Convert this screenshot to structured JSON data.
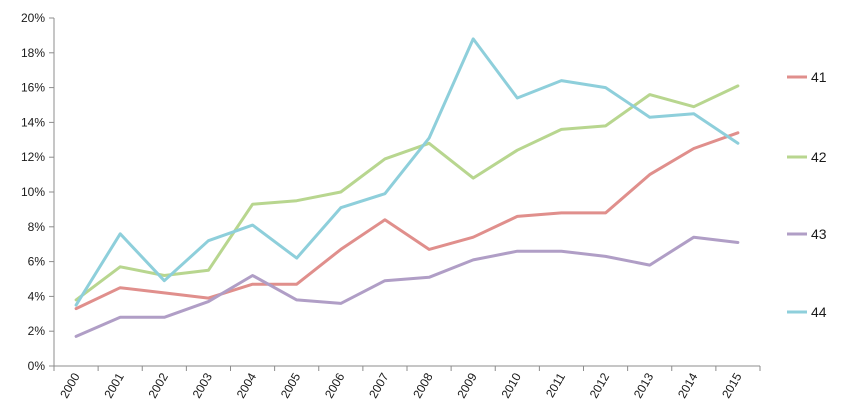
{
  "chart_data": {
    "type": "line",
    "x": [
      "2000",
      "2001",
      "2002",
      "2003",
      "2004",
      "2005",
      "2006",
      "2007",
      "2008",
      "2009",
      "2010",
      "2011",
      "2012",
      "2013",
      "2014",
      "2015"
    ],
    "ylim": [
      0,
      20
    ],
    "yticks": [
      0,
      2,
      4,
      6,
      8,
      10,
      12,
      14,
      16,
      18,
      20
    ],
    "ytick_labels": [
      "0%",
      "2%",
      "4%",
      "6%",
      "8%",
      "10%",
      "12%",
      "14%",
      "16%",
      "18%",
      "20%"
    ],
    "grid": false,
    "legend_position": "right",
    "title": "",
    "xlabel": "",
    "ylabel": "",
    "series": [
      {
        "name": "41",
        "color": "#e08f8c",
        "values": [
          3.3,
          4.5,
          4.2,
          3.9,
          4.7,
          4.7,
          6.7,
          8.4,
          6.7,
          7.4,
          8.6,
          8.8,
          8.8,
          11.0,
          12.5,
          13.4
        ]
      },
      {
        "name": "42",
        "color": "#b8d68f",
        "values": [
          3.8,
          5.7,
          5.2,
          5.5,
          9.3,
          9.5,
          10.0,
          11.9,
          12.8,
          10.8,
          12.4,
          13.6,
          13.8,
          15.6,
          14.9,
          16.1
        ]
      },
      {
        "name": "43",
        "color": "#b09ec6",
        "values": [
          1.7,
          2.8,
          2.8,
          3.7,
          5.2,
          3.8,
          3.6,
          4.9,
          5.1,
          6.1,
          6.6,
          6.6,
          6.3,
          5.8,
          7.4,
          7.1
        ]
      },
      {
        "name": "44",
        "color": "#8ecfdb",
        "values": [
          3.5,
          7.6,
          4.9,
          7.2,
          8.1,
          6.2,
          9.1,
          9.9,
          13.1,
          18.8,
          15.4,
          16.4,
          16.0,
          14.3,
          14.5,
          12.8
        ]
      }
    ]
  }
}
